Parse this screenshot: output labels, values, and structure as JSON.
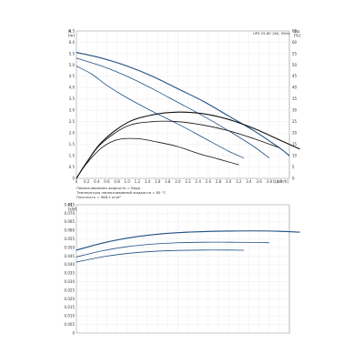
{
  "colors": {
    "black": "#111111",
    "blue": "#1f4f82",
    "blueLight": "#2d6aa8"
  },
  "chart_data": [
    {
      "type": "line",
      "legend_label": "UPS 25-60 180, 50Hz",
      "left_axis_title": "H\n[m]",
      "right_axis_title": "eta\n[%]",
      "x_axis_title": "Q [m³/h]",
      "xlim": [
        0,
        4.2
      ],
      "ylim": [
        0,
        6.5
      ],
      "y2lim": [
        0,
        65
      ],
      "x_ticks": [
        "0",
        "0.2",
        "0.4",
        "0.6",
        "0.8",
        "1.0",
        "1.2",
        "1.4",
        "1.6",
        "1.8",
        "2.0",
        "2.2",
        "2.4",
        "2.6",
        "2.8",
        "3.0",
        "3.2",
        "3.4",
        "3.6",
        "3.8",
        "4.0",
        "Q [m³/h]"
      ],
      "y_ticks": [
        "6.5",
        "6.0",
        "5.5",
        "5.0",
        "4.5",
        "4.0",
        "3.5",
        "3.0",
        "2.5",
        "2.0",
        "1.5",
        "1.0",
        "0.5",
        "0"
      ],
      "y2_ticks": [
        "65",
        "60",
        "55",
        "50",
        "45",
        "40",
        "35",
        "30",
        "25",
        "20",
        "15",
        "10",
        "5",
        "0"
      ],
      "notes": [
        "Перекачиваемая жидкость = Вода",
        "Температура перекачиваемой жидкости = 85 °C",
        "Плотность = 968.2 кг/м³"
      ],
      "series": [
        {
          "color": "blue",
          "x": [
            0,
            0.5,
            1.0,
            1.5,
            2.0,
            2.5,
            3.0,
            3.5,
            4.0,
            4.2
          ],
          "y": [
            5.55,
            5.3,
            4.95,
            4.5,
            3.95,
            3.4,
            2.75,
            2.1,
            1.35,
            1.0
          ]
        },
        {
          "color": "blue",
          "x": [
            0,
            0.5,
            1.0,
            1.5,
            2.0,
            2.5,
            3.0,
            3.5,
            3.8
          ],
          "y": [
            5.3,
            4.95,
            4.5,
            3.95,
            3.35,
            2.75,
            2.1,
            1.4,
            0.9
          ]
        },
        {
          "color": "blue",
          "x": [
            0,
            0.3,
            0.6,
            1.0,
            1.5,
            2.0,
            2.5,
            3.0,
            3.3
          ],
          "y": [
            4.95,
            4.6,
            4.1,
            3.55,
            2.95,
            2.4,
            1.8,
            1.2,
            0.9
          ]
        },
        {
          "color": "black",
          "x": [
            0,
            0.2,
            0.5,
            1.0,
            1.5,
            2.0,
            2.5,
            3.0,
            3.5,
            4.0,
            4.4
          ],
          "y": [
            0,
            0.7,
            1.6,
            2.45,
            2.8,
            2.92,
            2.85,
            2.6,
            2.2,
            1.7,
            1.3
          ]
        },
        {
          "color": "black",
          "x": [
            0,
            0.2,
            0.5,
            1.0,
            1.5,
            2.0,
            2.5,
            3.0,
            3.5,
            4.0
          ],
          "y": [
            0,
            0.7,
            1.55,
            2.3,
            2.5,
            2.5,
            2.35,
            2.1,
            1.75,
            1.35
          ]
        },
        {
          "color": "black",
          "x": [
            0,
            0.2,
            0.5,
            0.8,
            1.2,
            1.6,
            2.0,
            2.4,
            2.8,
            3.2
          ],
          "y": [
            0,
            0.65,
            1.35,
            1.7,
            1.75,
            1.6,
            1.4,
            1.1,
            0.85,
            0.6
          ]
        }
      ]
    },
    {
      "type": "line",
      "left_axis_title": "P1\n[kW]",
      "xlim": [
        0,
        4.2
      ],
      "ylim": [
        0,
        0.075
      ],
      "y_ticks": [
        "0.075",
        "0.070",
        "0.065",
        "0.060",
        "0.055",
        "0.050",
        "0.045",
        "0.040",
        "0.035",
        "0.030",
        "0.025",
        "0.020",
        "0.015",
        "0.010",
        "0.005",
        "0"
      ],
      "series": [
        {
          "color": "blue",
          "x": [
            0,
            0.5,
            1.0,
            1.5,
            2.0,
            2.5,
            3.0,
            3.5,
            4.0,
            4.4
          ],
          "y": [
            0.0485,
            0.0525,
            0.0555,
            0.0575,
            0.0587,
            0.0593,
            0.0596,
            0.0597,
            0.0595,
            0.059
          ]
        },
        {
          "color": "blue",
          "x": [
            0,
            0.5,
            1.0,
            1.5,
            2.0,
            2.5,
            3.0,
            3.5,
            3.8
          ],
          "y": [
            0.0445,
            0.048,
            0.0505,
            0.052,
            0.0528,
            0.0531,
            0.0531,
            0.053,
            0.0528
          ]
        },
        {
          "color": "blue",
          "x": [
            0,
            0.5,
            1.0,
            1.5,
            2.0,
            2.5,
            3.0,
            3.3
          ],
          "y": [
            0.0415,
            0.0445,
            0.0465,
            0.0477,
            0.0483,
            0.0485,
            0.0485,
            0.0484
          ]
        }
      ]
    }
  ]
}
